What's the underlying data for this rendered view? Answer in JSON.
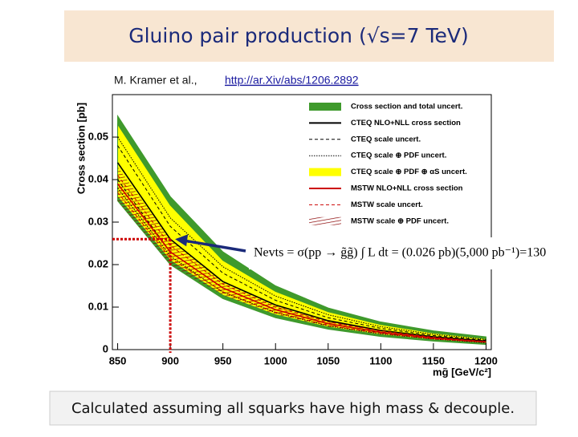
{
  "title": "Gluino pair production (√s=7 TeV)",
  "citation": "M. Kramer et al.,",
  "link": "http://ar.Xiv/abs/1206.2892",
  "footer": "Calculated assuming all squarks have high mass & decouple.",
  "chart_data": {
    "type": "line",
    "xlabel": "mg̃ [GeV/c²]",
    "ylabel": "Cross section [pb]",
    "x": [
      850,
      900,
      950,
      1000,
      1050,
      1100,
      1150,
      1200
    ],
    "xlim": [
      845,
      1205
    ],
    "xticks": [
      850,
      900,
      950,
      1000,
      1050,
      1100,
      1150,
      1200
    ],
    "ylim": [
      0,
      0.06
    ],
    "yticks": [
      0,
      0.01,
      0.02,
      0.03,
      0.04,
      0.05
    ],
    "series": [
      {
        "name": "Cross section and total uncert.",
        "style": "band",
        "color": "#3f9a2c",
        "upper": [
          0.055,
          0.036,
          0.023,
          0.015,
          0.0098,
          0.0065,
          0.0044,
          0.003
        ],
        "lower": [
          0.035,
          0.02,
          0.012,
          0.0075,
          0.0048,
          0.0031,
          0.002,
          0.0012
        ]
      },
      {
        "name": "CTEQ NLO+NLL cross section",
        "style": "line",
        "color": "#000000",
        "values": [
          0.044,
          0.026,
          0.016,
          0.0105,
          0.0068,
          0.0045,
          0.003,
          0.002
        ]
      },
      {
        "name": "CTEQ scale uncert.",
        "style": "dashed",
        "color": "#000000",
        "upper": [
          0.048,
          0.029,
          0.018,
          0.0116,
          0.0075,
          0.005,
          0.0033,
          0.0022
        ],
        "lower": [
          0.04,
          0.023,
          0.0145,
          0.0094,
          0.0061,
          0.004,
          0.0027,
          0.0018
        ]
      },
      {
        "name": "CTEQ scale ⊕ PDF uncert.",
        "style": "dotted",
        "color": "#000000",
        "upper": [
          0.05,
          0.031,
          0.0195,
          0.0126,
          0.0082,
          0.0054,
          0.0036,
          0.0024
        ],
        "lower": [
          0.038,
          0.022,
          0.0135,
          0.0087,
          0.0056,
          0.0037,
          0.0025,
          0.0016
        ]
      },
      {
        "name": "CTEQ scale ⊕ PDF ⊕ αS uncert.",
        "style": "band",
        "color": "#ffff00",
        "upper": [
          0.053,
          0.034,
          0.021,
          0.0137,
          0.0089,
          0.0059,
          0.0039,
          0.0026
        ],
        "lower": [
          0.036,
          0.021,
          0.0128,
          0.0082,
          0.0053,
          0.0035,
          0.0023,
          0.0015
        ]
      },
      {
        "name": "MSTW NLO+NLL cross section",
        "style": "line",
        "color": "#cc0000",
        "values": [
          0.039,
          0.023,
          0.0145,
          0.0094,
          0.0061,
          0.0041,
          0.0027,
          0.0018
        ]
      },
      {
        "name": "MSTW scale uncert.",
        "style": "dashed",
        "color": "#cc0000",
        "upper": [
          0.041,
          0.0245,
          0.0154,
          0.01,
          0.0065,
          0.0044,
          0.0029,
          0.0019
        ],
        "lower": [
          0.037,
          0.0215,
          0.0136,
          0.0088,
          0.0057,
          0.0038,
          0.0025,
          0.0017
        ]
      },
      {
        "name": "MSTW scale ⊕ PDF uncert.",
        "style": "hatched",
        "color": "#880000",
        "upper": [
          0.043,
          0.026,
          0.0162,
          0.0105,
          0.0068,
          0.0046,
          0.003,
          0.002
        ],
        "lower": [
          0.035,
          0.02,
          0.0128,
          0.0083,
          0.0054,
          0.0036,
          0.0024,
          0.0016
        ]
      }
    ],
    "annotation": {
      "text": "Nevts = σ(pp → g̃g̃) ∫ L dt = (0.026 pb)(5,000 pb⁻¹)=130",
      "x": 900,
      "y": 0.026,
      "color": "#cc0000"
    }
  }
}
